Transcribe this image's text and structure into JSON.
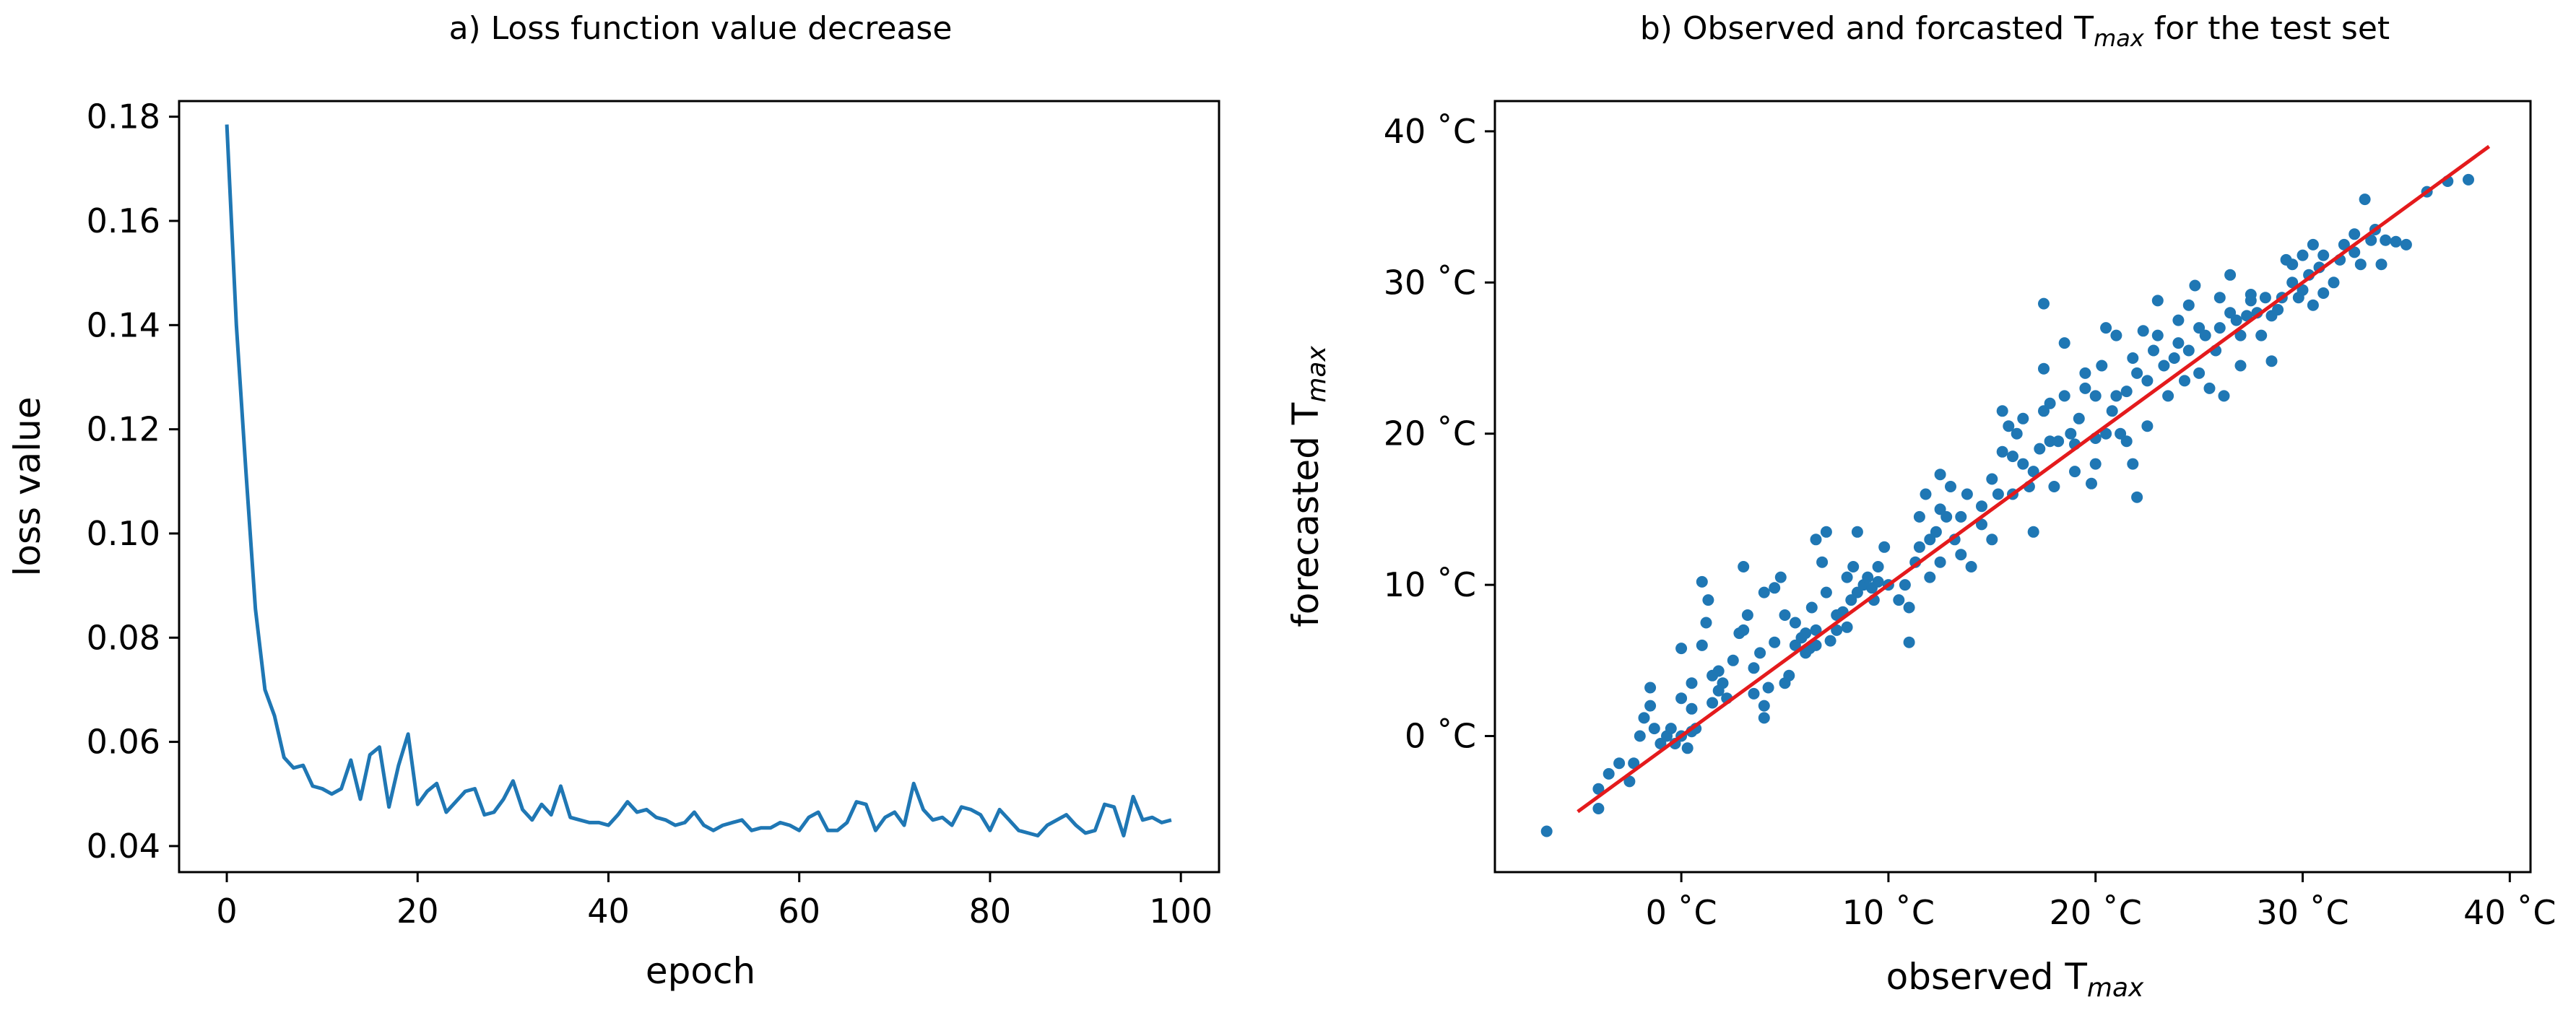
{
  "chart_data": [
    {
      "type": "line",
      "title": "a) Loss function value decrease",
      "xlabel": "epoch",
      "ylabel": "loss value",
      "xlim": [
        -5,
        104
      ],
      "ylim": [
        0.035,
        0.183
      ],
      "xticks": [
        0,
        20,
        40,
        60,
        80,
        100
      ],
      "xtick_labels": [
        "0",
        "20",
        "40",
        "60",
        "80",
        "100"
      ],
      "yticks": [
        0.04,
        0.06,
        0.08,
        0.1,
        0.12,
        0.14,
        0.16,
        0.18
      ],
      "ytick_labels": [
        "0.04",
        "0.06",
        "0.08",
        "0.10",
        "0.12",
        "0.14",
        "0.16",
        "0.18"
      ],
      "grid": false,
      "series": [
        {
          "name": "loss",
          "color": "#1f77b4",
          "x": [
            0,
            1,
            2,
            3,
            4,
            5,
            6,
            7,
            8,
            9,
            10,
            11,
            12,
            13,
            14,
            15,
            16,
            17,
            18,
            19,
            20,
            21,
            22,
            23,
            24,
            25,
            26,
            27,
            28,
            29,
            30,
            31,
            32,
            33,
            34,
            35,
            36,
            37,
            38,
            39,
            40,
            41,
            42,
            43,
            44,
            45,
            46,
            47,
            48,
            49,
            50,
            51,
            52,
            53,
            54,
            55,
            56,
            57,
            58,
            59,
            60,
            61,
            62,
            63,
            64,
            65,
            66,
            67,
            68,
            69,
            70,
            71,
            72,
            73,
            74,
            75,
            76,
            77,
            78,
            79,
            80,
            81,
            82,
            83,
            84,
            85,
            86,
            87,
            88,
            89,
            90,
            91,
            92,
            93,
            94,
            95,
            96,
            97,
            98,
            99
          ],
          "values": [
            0.1785,
            0.14,
            0.112,
            0.0855,
            0.07,
            0.065,
            0.057,
            0.055,
            0.0555,
            0.0515,
            0.051,
            0.05,
            0.051,
            0.0565,
            0.049,
            0.0575,
            0.059,
            0.0475,
            0.0555,
            0.0615,
            0.048,
            0.0505,
            0.052,
            0.0465,
            0.0485,
            0.0505,
            0.051,
            0.046,
            0.0465,
            0.049,
            0.0525,
            0.047,
            0.045,
            0.048,
            0.046,
            0.0515,
            0.0455,
            0.045,
            0.0445,
            0.0445,
            0.044,
            0.046,
            0.0485,
            0.0465,
            0.047,
            0.0455,
            0.045,
            0.044,
            0.0445,
            0.0465,
            0.044,
            0.043,
            0.044,
            0.0445,
            0.045,
            0.043,
            0.0435,
            0.0435,
            0.0445,
            0.044,
            0.043,
            0.0455,
            0.0465,
            0.043,
            0.043,
            0.0445,
            0.0485,
            0.048,
            0.043,
            0.0455,
            0.0465,
            0.044,
            0.052,
            0.047,
            0.045,
            0.0455,
            0.044,
            0.0475,
            0.047,
            0.046,
            0.043,
            0.047,
            0.045,
            0.043,
            0.0425,
            0.042,
            0.044,
            0.045,
            0.046,
            0.044,
            0.0425,
            0.043,
            0.048,
            0.0475,
            0.042,
            0.0495,
            0.045,
            0.0455,
            0.0445,
            0.045
          ]
        }
      ]
    },
    {
      "type": "scatter",
      "title": "b) Observed and forcasted T",
      "title_sub": "max",
      "title_suffix": " for the test set",
      "xlabel": "observed T",
      "xlabel_sub": "max",
      "ylabel": "forecasted T",
      "ylabel_sub": "max",
      "xlim": [
        -9,
        41
      ],
      "ylim": [
        -9,
        42
      ],
      "xticks": [
        0,
        10,
        20,
        30,
        40
      ],
      "xtick_labels": [
        "0 ˚C",
        "10 ˚C",
        "20 ˚C",
        "30 ˚C",
        "40 ˚C"
      ],
      "yticks": [
        0,
        10,
        20,
        30,
        40
      ],
      "ytick_labels": [
        "0 ˚C",
        "10 ˚C",
        "20 ˚C",
        "30 ˚C",
        "40 ˚C"
      ],
      "grid": false,
      "point_color": "#1f77b4",
      "fit_line": {
        "color": "#e41a1c",
        "x": [
          -5,
          39
        ],
        "y": [
          -5,
          39
        ]
      },
      "points": [
        [
          -6.5,
          -6.3
        ],
        [
          -4,
          -4.8
        ],
        [
          -4,
          -3.5
        ],
        [
          -3.5,
          -2.5
        ],
        [
          -3,
          -1.8
        ],
        [
          -2.5,
          -3
        ],
        [
          -2.3,
          -1.8
        ],
        [
          -2,
          0
        ],
        [
          -1.8,
          1.2
        ],
        [
          -1.5,
          2
        ],
        [
          -1.5,
          3.2
        ],
        [
          -1.3,
          0.5
        ],
        [
          -1,
          -0.5
        ],
        [
          -0.7,
          0
        ],
        [
          -0.5,
          0.5
        ],
        [
          -0.3,
          -0.5
        ],
        [
          0,
          0
        ],
        [
          0.3,
          -0.8
        ],
        [
          0.5,
          0.3
        ],
        [
          0.7,
          0.5
        ],
        [
          0.5,
          1.8
        ],
        [
          0,
          2.5
        ],
        [
          0.5,
          3.5
        ],
        [
          0,
          5.8
        ],
        [
          1,
          6
        ],
        [
          1.2,
          7.5
        ],
        [
          1,
          10.2
        ],
        [
          1.3,
          9
        ],
        [
          1.5,
          2.2
        ],
        [
          1.5,
          4
        ],
        [
          1.8,
          4.3
        ],
        [
          2,
          3.5
        ],
        [
          1.8,
          3
        ],
        [
          2.2,
          2.5
        ],
        [
          2.5,
          5
        ],
        [
          2.8,
          6.8
        ],
        [
          3,
          7
        ],
        [
          3.2,
          8
        ],
        [
          3,
          11.2
        ],
        [
          3.5,
          4.5
        ],
        [
          3.8,
          5.5
        ],
        [
          3.5,
          2.8
        ],
        [
          4,
          1.2
        ],
        [
          4,
          2
        ],
        [
          4.2,
          3.2
        ],
        [
          4.5,
          6.2
        ],
        [
          4.5,
          9.8
        ],
        [
          4,
          9.5
        ],
        [
          4.8,
          10.5
        ],
        [
          5,
          3.5
        ],
        [
          5.2,
          4
        ],
        [
          5,
          8
        ],
        [
          5.5,
          7.5
        ],
        [
          5.5,
          6
        ],
        [
          5.8,
          6.5
        ],
        [
          6,
          5.5
        ],
        [
          6,
          6.8
        ],
        [
          6.2,
          5.8
        ],
        [
          6.5,
          6
        ],
        [
          6.5,
          7
        ],
        [
          6.3,
          8.5
        ],
        [
          6.5,
          13
        ],
        [
          6.8,
          11.5
        ],
        [
          7,
          13.5
        ],
        [
          7,
          9.5
        ],
        [
          7.2,
          6.3
        ],
        [
          7.5,
          7
        ],
        [
          7.5,
          8
        ],
        [
          7.8,
          8.2
        ],
        [
          8,
          7.2
        ],
        [
          8.2,
          9
        ],
        [
          8,
          10.5
        ],
        [
          8.3,
          11.2
        ],
        [
          8.5,
          9.5
        ],
        [
          8.8,
          10
        ],
        [
          8.5,
          13.5
        ],
        [
          9,
          10.5
        ],
        [
          9.2,
          9.8
        ],
        [
          9.5,
          10.2
        ],
        [
          9.3,
          9
        ],
        [
          9.5,
          11.2
        ],
        [
          9.8,
          12.5
        ],
        [
          10,
          10
        ],
        [
          10.5,
          9
        ],
        [
          10.8,
          10
        ],
        [
          11,
          6.2
        ],
        [
          11,
          8.5
        ],
        [
          11.3,
          11.5
        ],
        [
          11.5,
          12.5
        ],
        [
          11.5,
          14.5
        ],
        [
          11.8,
          16
        ],
        [
          12,
          10.5
        ],
        [
          12,
          13
        ],
        [
          12.3,
          13.5
        ],
        [
          12.5,
          11.5
        ],
        [
          12.5,
          15
        ],
        [
          12.8,
          14.5
        ],
        [
          12.5,
          17.3
        ],
        [
          13,
          16.5
        ],
        [
          13.2,
          13
        ],
        [
          13.5,
          12
        ],
        [
          13.5,
          14.5
        ],
        [
          13.8,
          16
        ],
        [
          14,
          11.2
        ],
        [
          14.5,
          14
        ],
        [
          14.5,
          15.2
        ],
        [
          15,
          13
        ],
        [
          15,
          17
        ],
        [
          15.3,
          16
        ],
        [
          15.5,
          18.8
        ],
        [
          15.5,
          21.5
        ],
        [
          15.8,
          20.5
        ],
        [
          16,
          18.5
        ],
        [
          16.2,
          20
        ],
        [
          16,
          16
        ],
        [
          16.5,
          18
        ],
        [
          16.5,
          21
        ],
        [
          16.8,
          16.5
        ],
        [
          17,
          13.5
        ],
        [
          17,
          17.5
        ],
        [
          17.3,
          19
        ],
        [
          17.5,
          21.5
        ],
        [
          17.5,
          24.3
        ],
        [
          17.5,
          28.6
        ],
        [
          17.8,
          19.5
        ],
        [
          17.8,
          22
        ],
        [
          18,
          16.5
        ],
        [
          18.2,
          19.5
        ],
        [
          18.5,
          22.5
        ],
        [
          18.5,
          26
        ],
        [
          18.8,
          20
        ],
        [
          19,
          17.5
        ],
        [
          19,
          19.3
        ],
        [
          19.2,
          21
        ],
        [
          19.5,
          23
        ],
        [
          19.5,
          24
        ],
        [
          19.8,
          16.7
        ],
        [
          20,
          18
        ],
        [
          20,
          19.7
        ],
        [
          20,
          22.5
        ],
        [
          20.3,
          24.5
        ],
        [
          20.5,
          27
        ],
        [
          20.5,
          20
        ],
        [
          20.8,
          21.5
        ],
        [
          21,
          22.5
        ],
        [
          21,
          26.5
        ],
        [
          21.2,
          20
        ],
        [
          21.5,
          19.5
        ],
        [
          21.5,
          22.8
        ],
        [
          21.8,
          25
        ],
        [
          21.8,
          18
        ],
        [
          22,
          15.8
        ],
        [
          22,
          24
        ],
        [
          22.3,
          26.8
        ],
        [
          22.5,
          20.5
        ],
        [
          22.5,
          23.5
        ],
        [
          22.8,
          25.5
        ],
        [
          23,
          26.5
        ],
        [
          23,
          28.8
        ],
        [
          23.3,
          24.5
        ],
        [
          23.5,
          22.5
        ],
        [
          23.8,
          25
        ],
        [
          24,
          26
        ],
        [
          24,
          27.5
        ],
        [
          24.3,
          23.5
        ],
        [
          24.5,
          28.5
        ],
        [
          24.5,
          25.5
        ],
        [
          24.8,
          29.8
        ],
        [
          25,
          27
        ],
        [
          25,
          24
        ],
        [
          25.3,
          26.5
        ],
        [
          25.5,
          23
        ],
        [
          25.8,
          25.5
        ],
        [
          26,
          27
        ],
        [
          26,
          29
        ],
        [
          26.2,
          22.5
        ],
        [
          26.5,
          28
        ],
        [
          26.5,
          30.5
        ],
        [
          26.8,
          27.5
        ],
        [
          27,
          26.5
        ],
        [
          27,
          24.5
        ],
        [
          27.3,
          27.8
        ],
        [
          27.5,
          29.2
        ],
        [
          27.5,
          28.8
        ],
        [
          27.8,
          28
        ],
        [
          28,
          26.5
        ],
        [
          28.2,
          29
        ],
        [
          28.5,
          24.8
        ],
        [
          28.5,
          27.8
        ],
        [
          28.8,
          28.2
        ],
        [
          29,
          29
        ],
        [
          29.2,
          31.5
        ],
        [
          29.5,
          30
        ],
        [
          29.5,
          31.2
        ],
        [
          29.8,
          29
        ],
        [
          30,
          31.8
        ],
        [
          30,
          29.5
        ],
        [
          30.3,
          30.5
        ],
        [
          30.5,
          28.5
        ],
        [
          30.5,
          32.5
        ],
        [
          30.8,
          31
        ],
        [
          31,
          31.8
        ],
        [
          31,
          29.3
        ],
        [
          31.5,
          30
        ],
        [
          31.8,
          31.5
        ],
        [
          32,
          32.5
        ],
        [
          32.5,
          32
        ],
        [
          32.5,
          33.2
        ],
        [
          32.8,
          31.2
        ],
        [
          33,
          35.5
        ],
        [
          33.3,
          32.8
        ],
        [
          33.5,
          33.5
        ],
        [
          33.8,
          31.2
        ],
        [
          34,
          32.8
        ],
        [
          34.5,
          32.7
        ],
        [
          35,
          32.5
        ],
        [
          36,
          36
        ],
        [
          37,
          36.7
        ],
        [
          38,
          36.8
        ]
      ]
    }
  ]
}
